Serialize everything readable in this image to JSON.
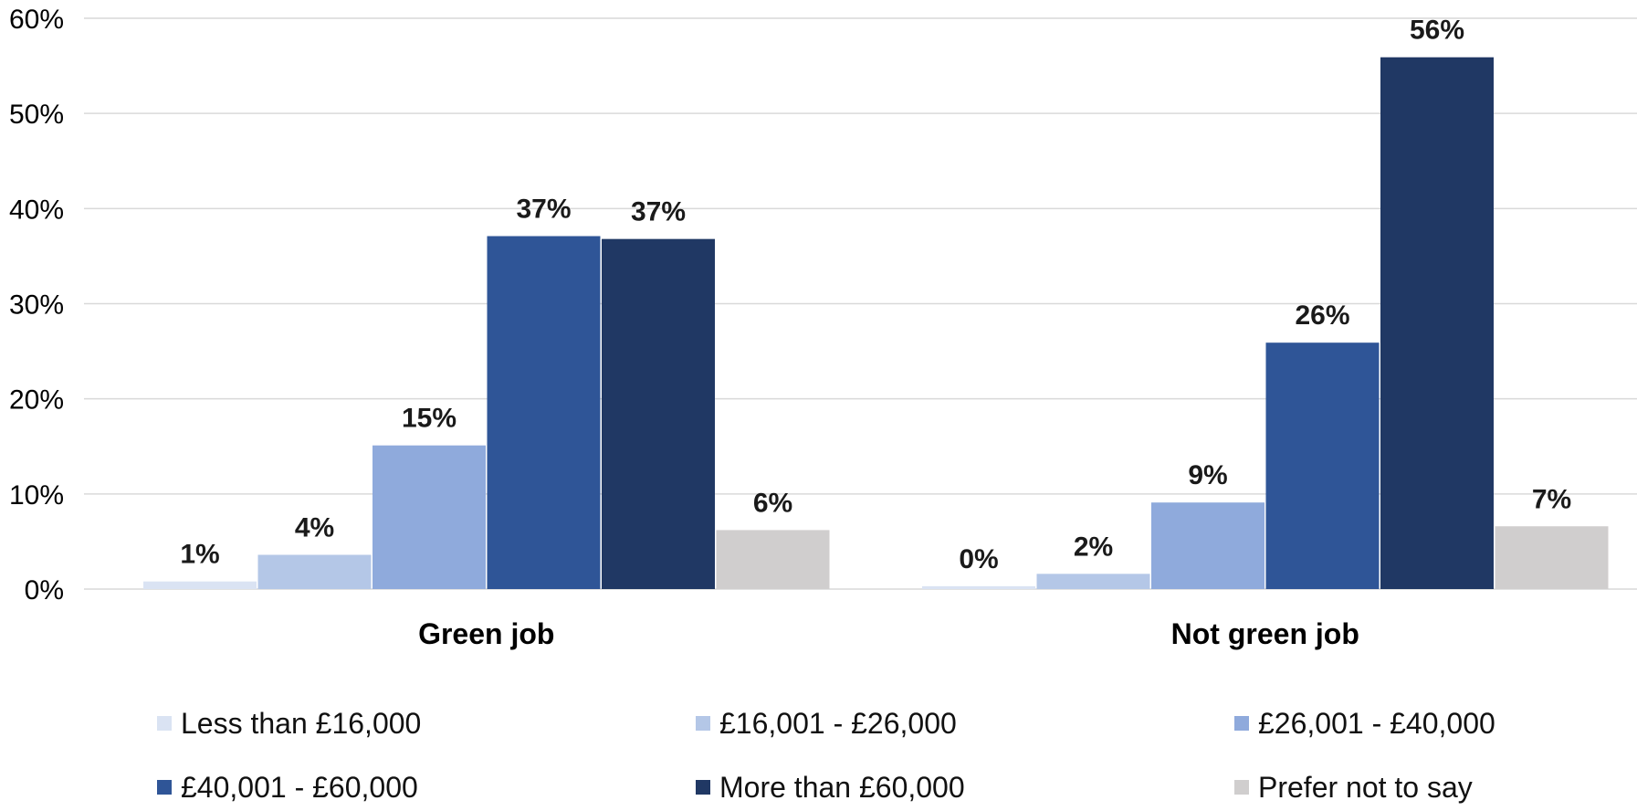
{
  "chart_data": {
    "type": "bar",
    "categories": [
      "Green job",
      "Not green job"
    ],
    "series": [
      {
        "name": "Less than £16,000",
        "values": [
          1,
          0
        ],
        "labels": [
          "1%",
          "0%"
        ],
        "color": "#dae3f3"
      },
      {
        "name": "£16,001 - £26,000",
        "values": [
          4,
          2
        ],
        "labels": [
          "4%",
          "2%"
        ],
        "color": "#b4c7e7"
      },
      {
        "name": "£26,001 - £40,000",
        "values": [
          15,
          9
        ],
        "labels": [
          "15%",
          "9%"
        ],
        "color": "#8faadc"
      },
      {
        "name": "£40,001 - £60,000",
        "values": [
          37,
          26
        ],
        "labels": [
          "37%",
          "26%"
        ],
        "color": "#2f5597"
      },
      {
        "name": "More than £60,000",
        "values": [
          37,
          56
        ],
        "labels": [
          "37%",
          "56%"
        ],
        "color": "#203864"
      },
      {
        "name": "Prefer not to say",
        "values": [
          6,
          7
        ],
        "labels": [
          "6%",
          "7%"
        ],
        "color": "#d0cece"
      }
    ],
    "bar_values_precise": [
      [
        0.8,
        0.3
      ],
      [
        3.6,
        1.6
      ],
      [
        15.1,
        9.1
      ],
      [
        37.1,
        25.9
      ],
      [
        36.8,
        55.9
      ],
      [
        6.2,
        6.6
      ]
    ],
    "ylim": [
      0,
      60
    ],
    "yticks": [
      0,
      10,
      20,
      30,
      40,
      50,
      60
    ],
    "ytick_labels": [
      "0%",
      "10%",
      "20%",
      "30%",
      "40%",
      "50%",
      "60%"
    ],
    "title": "",
    "xlabel": "",
    "ylabel": "",
    "grid": true,
    "legend": "bottom",
    "grid_color": "#d9d9d9"
  }
}
